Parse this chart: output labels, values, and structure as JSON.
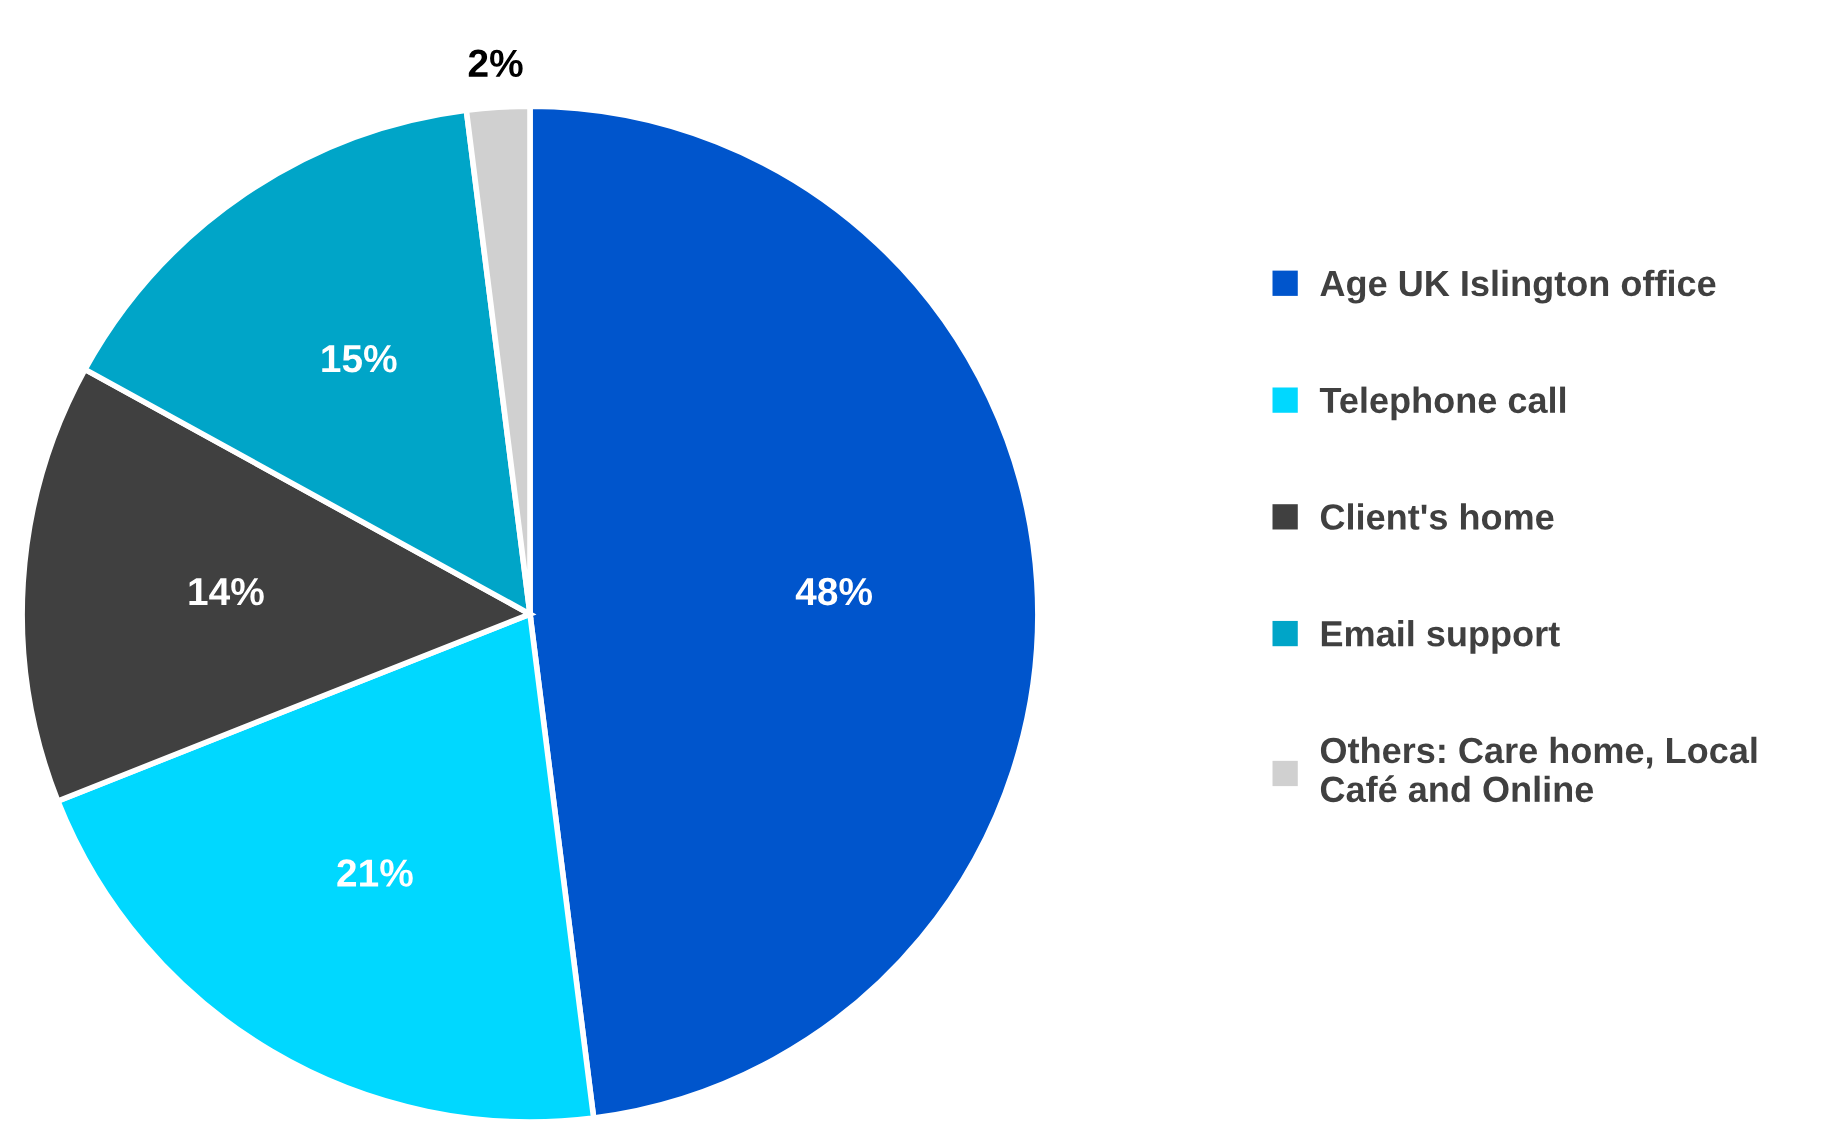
{
  "chart_data": {
    "type": "pie",
    "categories": [
      "Age UK Islington office",
      "Telephone call",
      "Client's home",
      "Email support",
      "Others: Care home, Local\nCafé and Online"
    ],
    "values": [
      48,
      21,
      14,
      15,
      2
    ],
    "colors": [
      "#0055cc",
      "#00d8ff",
      "#404040",
      "#00a5c8",
      "#d0d0d0"
    ],
    "value_labels": [
      "48%",
      "21%",
      "14%",
      "15%",
      "2%"
    ],
    "legend": "right"
  }
}
